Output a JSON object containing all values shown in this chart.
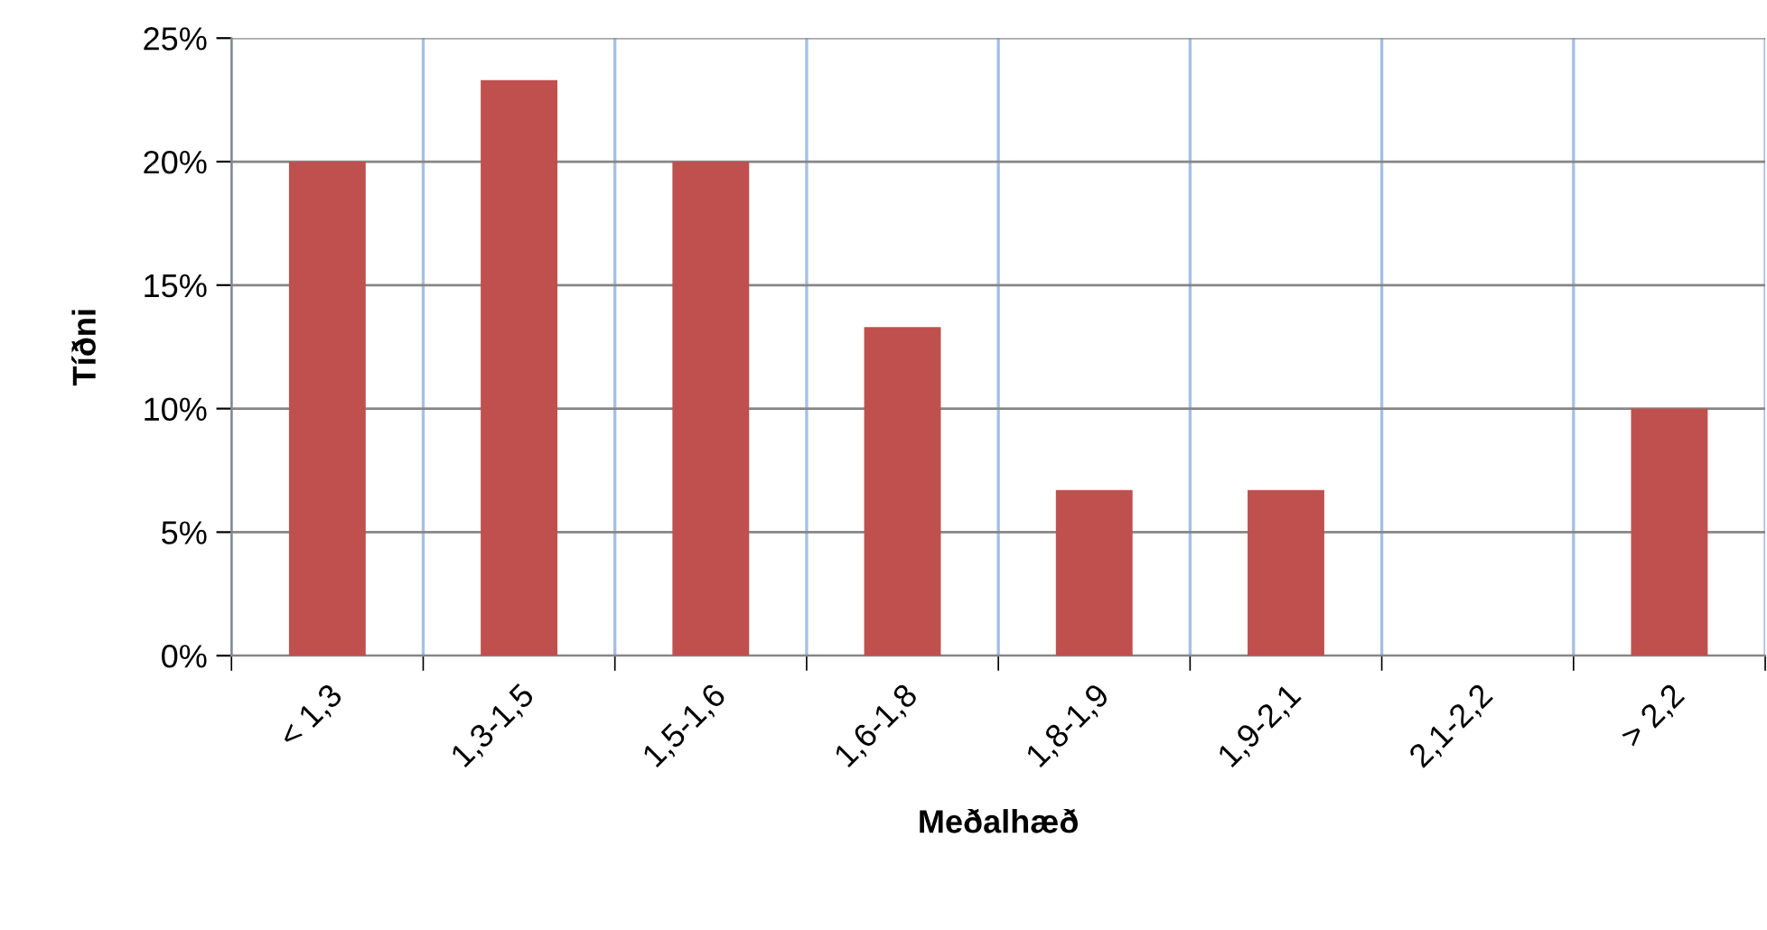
{
  "chart_data": {
    "type": "bar",
    "xlabel": "Meðalhæð",
    "ylabel": "Tíðni",
    "categories": [
      "< 1,3",
      "1,3-1,5",
      "1,5-1,6",
      "1,6-1,8",
      "1,8-1,9",
      "1,9-2,1",
      "2,1-2,2",
      "> 2,2"
    ],
    "values": [
      20,
      23.3,
      20,
      13.3,
      6.7,
      6.7,
      0,
      10
    ],
    "color": "#c0504d",
    "ylim": [
      0,
      25
    ],
    "yticks": [
      {
        "value": 0,
        "label": "0%"
      },
      {
        "value": 5,
        "label": "5%"
      },
      {
        "value": 10,
        "label": "10%"
      },
      {
        "value": 15,
        "label": "15%"
      },
      {
        "value": 20,
        "label": "20%"
      },
      {
        "value": 25,
        "label": "25%"
      }
    ],
    "grid": true
  }
}
